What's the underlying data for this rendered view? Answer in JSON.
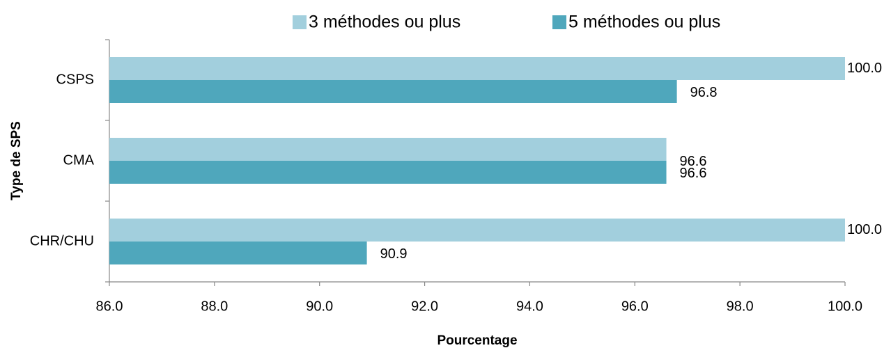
{
  "chart_data": {
    "type": "bar",
    "orientation": "horizontal",
    "categories": [
      "CSPS",
      "CMA",
      "CHR/CHU"
    ],
    "series": [
      {
        "name": "3 méthodes ou plus",
        "color": "#a2cfdd",
        "values": [
          100.0,
          96.6,
          100.0
        ],
        "value_labels": [
          "100.0",
          "96.6",
          "100.0"
        ]
      },
      {
        "name": "5 méthodes ou plus",
        "color": "#4fa7bc",
        "values": [
          96.8,
          96.6,
          90.9
        ],
        "value_labels": [
          "96.8",
          "96.6",
          "90.9"
        ]
      }
    ],
    "xlim": [
      86,
      100
    ],
    "xticks": [
      {
        "value": 86,
        "label": "86.0"
      },
      {
        "value": 88,
        "label": "88.0"
      },
      {
        "value": 90,
        "label": "90.0"
      },
      {
        "value": 92,
        "label": "92.0"
      },
      {
        "value": 94,
        "label": "94.0"
      },
      {
        "value": 96,
        "label": "96.0"
      },
      {
        "value": 98,
        "label": "98.0"
      },
      {
        "value": 100,
        "label": "100.0"
      }
    ],
    "x_label": "Pourcentage",
    "y_label": "Type de SPS",
    "legend": "top",
    "grid": false
  }
}
